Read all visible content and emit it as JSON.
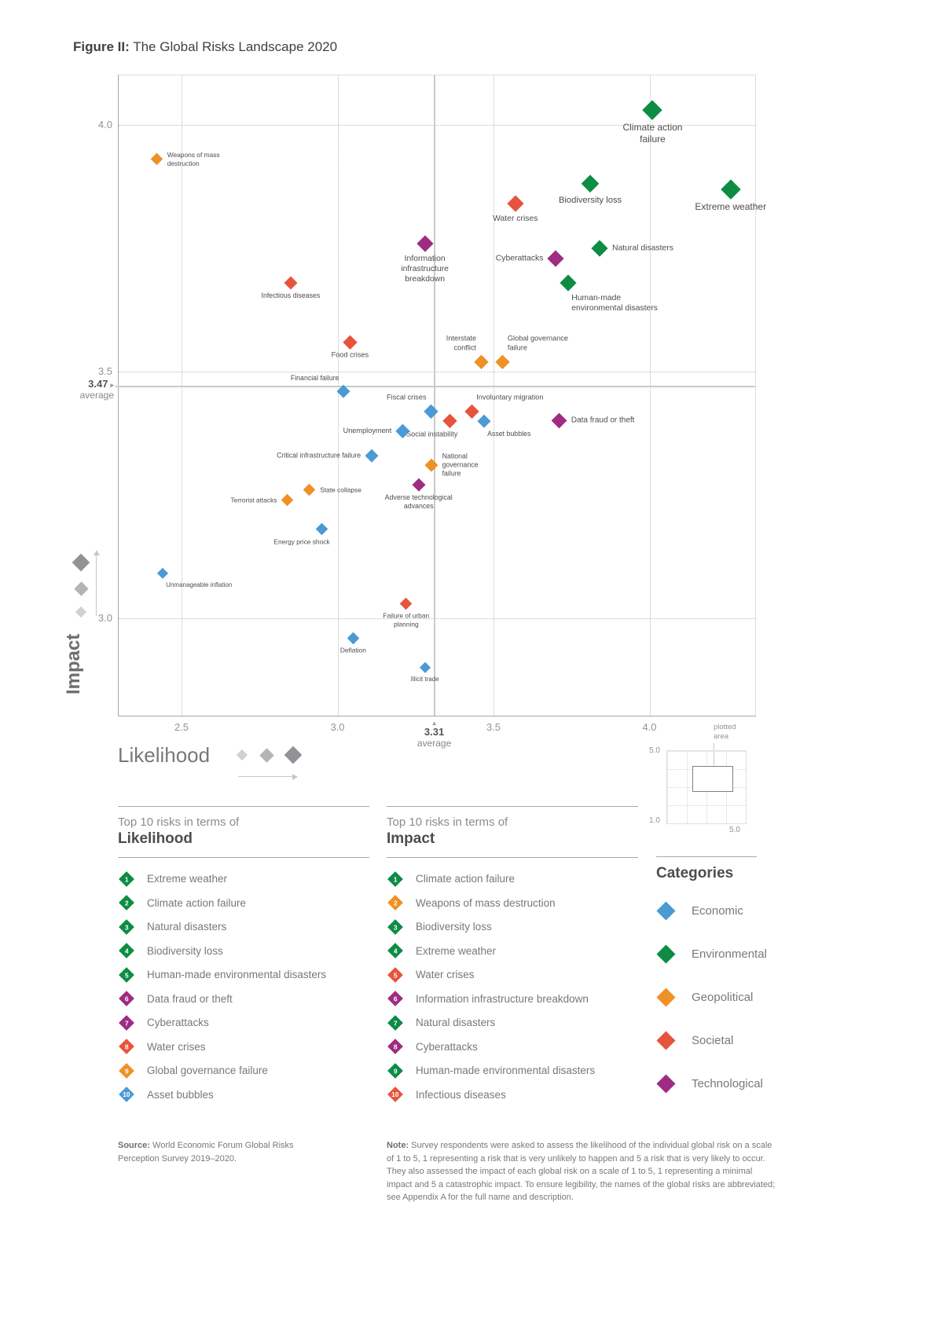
{
  "figure": {
    "label": "Figure II:",
    "title": "The Global Risks Landscape 2020"
  },
  "icons": {
    "impact_average_arrow": "▸",
    "likelihood_average_arrow": "▲"
  },
  "chart_data": {
    "type": "scatter",
    "title": "The Global Risks Landscape 2020",
    "xlabel": "Likelihood",
    "ylabel": "Impact",
    "x_ticks": [
      2.5,
      3.0,
      3.5,
      4.0
    ],
    "y_ticks": [
      4.0,
      3.5,
      3.0
    ],
    "xlim": [
      2.3,
      4.35
    ],
    "ylim": [
      2.8,
      4.1
    ],
    "grid": "dotted",
    "legend_position": "bottom-right",
    "averages": {
      "likelihood": {
        "value": 3.31,
        "label": "3.31",
        "caption": "average"
      },
      "impact": {
        "value": 3.47,
        "label": "3.47",
        "caption": "average"
      }
    },
    "categories": {
      "economic": {
        "label": "Economic",
        "color": "#4a9ad4"
      },
      "environmental": {
        "label": "Environmental",
        "color": "#0d8c44"
      },
      "geopolitical": {
        "label": "Geopolitical",
        "color": "#ee9126"
      },
      "societal": {
        "label": "Societal",
        "color": "#e6543d"
      },
      "technological": {
        "label": "Technological",
        "color": "#9e2c82"
      }
    },
    "points": [
      {
        "name": "Climate action failure",
        "x": 4.01,
        "y": 4.03,
        "category": "environmental",
        "size": 24,
        "label_pos": "below",
        "label_w": 96
      },
      {
        "name": "Weapons of mass destruction",
        "x": 2.42,
        "y": 3.93,
        "category": "geopolitical",
        "size": 15,
        "label_pos": "right",
        "label_w": 78
      },
      {
        "name": "Biodiversity loss",
        "x": 3.81,
        "y": 3.88,
        "category": "environmental",
        "size": 22,
        "label_pos": "below",
        "label_w": 110
      },
      {
        "name": "Extreme weather",
        "x": 4.26,
        "y": 3.87,
        "category": "environmental",
        "size": 24,
        "label_pos": "below",
        "label_w": 124
      },
      {
        "name": "Water crises",
        "x": 3.57,
        "y": 3.84,
        "category": "societal",
        "size": 20,
        "label_pos": "below",
        "label_w": 90
      },
      {
        "name": "Information infrastructure breakdown",
        "x": 3.28,
        "y": 3.76,
        "category": "technological",
        "size": 20,
        "label_pos": "below",
        "label_w": 88
      },
      {
        "name": "Natural disasters",
        "x": 3.84,
        "y": 3.75,
        "category": "environmental",
        "size": 20,
        "label_pos": "right",
        "label_w": 112
      },
      {
        "name": "Cyberattacks",
        "x": 3.7,
        "y": 3.73,
        "category": "technological",
        "size": 20,
        "label_pos": "left",
        "label_w": 92
      },
      {
        "name": "Human-made environmental disasters",
        "x": 3.74,
        "y": 3.68,
        "category": "environmental",
        "size": 20,
        "label_pos": "below-right",
        "label_w": 120
      },
      {
        "name": "Infectious diseases",
        "x": 2.85,
        "y": 3.68,
        "category": "societal",
        "size": 16,
        "label_pos": "below",
        "label_w": 100
      },
      {
        "name": "Food crises",
        "x": 3.04,
        "y": 3.56,
        "category": "societal",
        "size": 17,
        "label_pos": "below",
        "label_w": 80
      },
      {
        "name": "Interstate conflict",
        "x": 3.46,
        "y": 3.52,
        "category": "geopolitical",
        "size": 17,
        "label_pos": "above-left",
        "label_w": 58
      },
      {
        "name": "Global governance failure",
        "x": 3.53,
        "y": 3.52,
        "category": "geopolitical",
        "size": 17,
        "label_pos": "above-right",
        "label_w": 102
      },
      {
        "name": "Financial failure",
        "x": 3.02,
        "y": 3.46,
        "category": "economic",
        "size": 16,
        "label_pos": "above-left",
        "label_w": 92
      },
      {
        "name": "Fiscal crises",
        "x": 3.3,
        "y": 3.42,
        "category": "economic",
        "size": 17,
        "label_pos": "above-left",
        "label_w": 70
      },
      {
        "name": "Involuntary migration",
        "x": 3.43,
        "y": 3.42,
        "category": "societal",
        "size": 17,
        "label_pos": "above-right",
        "label_w": 118
      },
      {
        "name": "Social instability",
        "x": 3.36,
        "y": 3.4,
        "category": "societal",
        "size": 17,
        "label_pos": "below-left",
        "label_w": 95
      },
      {
        "name": "Asset bubbles",
        "x": 3.47,
        "y": 3.4,
        "category": "economic",
        "size": 16,
        "label_pos": "below-right",
        "label_w": 80
      },
      {
        "name": "Data fraud or theft",
        "x": 3.71,
        "y": 3.4,
        "category": "technological",
        "size": 19,
        "label_pos": "right",
        "label_w": 108
      },
      {
        "name": "Unemployment",
        "x": 3.21,
        "y": 3.38,
        "category": "economic",
        "size": 17,
        "label_pos": "left",
        "label_w": 96
      },
      {
        "name": "Critical infrastructure failure",
        "x": 3.11,
        "y": 3.33,
        "category": "economic",
        "size": 16,
        "label_pos": "left",
        "label_w": 112
      },
      {
        "name": "National governance failure",
        "x": 3.3,
        "y": 3.31,
        "category": "geopolitical",
        "size": 16,
        "label_pos": "right",
        "label_w": 70
      },
      {
        "name": "Adverse technological advances",
        "x": 3.26,
        "y": 3.27,
        "category": "technological",
        "size": 16,
        "label_pos": "below",
        "label_w": 124
      },
      {
        "name": "State collapse",
        "x": 2.91,
        "y": 3.26,
        "category": "geopolitical",
        "size": 15,
        "label_pos": "right",
        "label_w": 88
      },
      {
        "name": "Terrorist attacks",
        "x": 2.84,
        "y": 3.24,
        "category": "geopolitical",
        "size": 15,
        "label_pos": "left",
        "label_w": 92
      },
      {
        "name": "Energy price shock",
        "x": 2.95,
        "y": 3.18,
        "category": "economic",
        "size": 15,
        "label_pos": "below-left",
        "label_w": 104
      },
      {
        "name": "Unmanageable inflation",
        "x": 2.44,
        "y": 3.09,
        "category": "economic",
        "size": 14,
        "label_pos": "below-right",
        "label_w": 124
      },
      {
        "name": "Failure of urban planning",
        "x": 3.22,
        "y": 3.03,
        "category": "societal",
        "size": 15,
        "label_pos": "below",
        "label_w": 78
      },
      {
        "name": "Deflation",
        "x": 3.05,
        "y": 2.96,
        "category": "economic",
        "size": 15,
        "label_pos": "below",
        "label_w": 70
      },
      {
        "name": "Illicit trade",
        "x": 3.28,
        "y": 2.9,
        "category": "economic",
        "size": 14,
        "label_pos": "below",
        "label_w": 70
      }
    ]
  },
  "minimap": {
    "caption": "plotted area",
    "top_left": "5.0",
    "bottom_left": "1.0",
    "bottom_right": "5.0"
  },
  "top10": {
    "likelihood": {
      "eyebrow": "Top 10 risks in terms of",
      "title": "Likelihood",
      "items": [
        {
          "rank": 1,
          "label": "Extreme weather",
          "category": "environmental"
        },
        {
          "rank": 2,
          "label": "Climate action failure",
          "category": "environmental"
        },
        {
          "rank": 3,
          "label": "Natural disasters",
          "category": "environmental"
        },
        {
          "rank": 4,
          "label": "Biodiversity loss",
          "category": "environmental"
        },
        {
          "rank": 5,
          "label": "Human-made environmental disasters",
          "category": "environmental"
        },
        {
          "rank": 6,
          "label": "Data fraud or theft",
          "category": "technological"
        },
        {
          "rank": 7,
          "label": "Cyberattacks",
          "category": "technological"
        },
        {
          "rank": 8,
          "label": "Water crises",
          "category": "societal"
        },
        {
          "rank": 9,
          "label": "Global governance failure",
          "category": "geopolitical"
        },
        {
          "rank": 10,
          "label": "Asset bubbles",
          "category": "economic"
        }
      ]
    },
    "impact": {
      "eyebrow": "Top 10 risks in terms of",
      "title": "Impact",
      "items": [
        {
          "rank": 1,
          "label": "Climate action failure",
          "category": "environmental"
        },
        {
          "rank": 2,
          "label": "Weapons of mass destruction",
          "category": "geopolitical"
        },
        {
          "rank": 3,
          "label": "Biodiversity loss",
          "category": "environmental"
        },
        {
          "rank": 4,
          "label": "Extreme weather",
          "category": "environmental"
        },
        {
          "rank": 5,
          "label": "Water crises",
          "category": "societal"
        },
        {
          "rank": 6,
          "label": "Information infrastructure breakdown",
          "category": "technological"
        },
        {
          "rank": 7,
          "label": "Natural disasters",
          "category": "environmental"
        },
        {
          "rank": 8,
          "label": "Cyberattacks",
          "category": "technological"
        },
        {
          "rank": 9,
          "label": "Human-made environmental disasters",
          "category": "environmental"
        },
        {
          "rank": 10,
          "label": "Infectious diseases",
          "category": "societal"
        }
      ]
    }
  },
  "legend": {
    "title": "Categories",
    "items": [
      {
        "key": "economic",
        "label": "Economic"
      },
      {
        "key": "environmental",
        "label": "Environmental"
      },
      {
        "key": "geopolitical",
        "label": "Geopolitical"
      },
      {
        "key": "societal",
        "label": "Societal"
      },
      {
        "key": "technological",
        "label": "Technological"
      }
    ]
  },
  "source": {
    "label": "Source:",
    "text": "World Economic Forum Global Risks Perception Survey 2019–2020."
  },
  "note": {
    "label": "Note:",
    "text": "Survey respondents were asked to assess the likelihood of the individual global risk on a scale of 1 to 5, 1 representing a risk that is very unlikely to happen and 5 a risk that is very likely to occur. They also assessed the impact of each global risk on a scale of 1 to 5, 1 representing a minimal impact and 5 a catastrophic impact. To ensure legibility, the names of the global risks are abbreviated; see Appendix A for the full name and description."
  }
}
